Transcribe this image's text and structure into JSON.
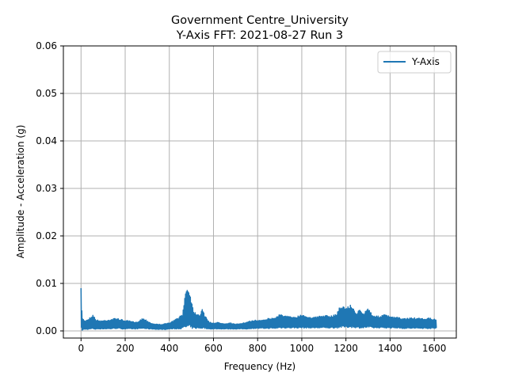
{
  "chart_data": {
    "type": "line",
    "title": "Government Centre_University",
    "subtitle": "Y-Axis FFT: 2021-08-27 Run 3",
    "xlabel": "Frequency (Hz)",
    "ylabel": "Amplitude - Acceleration (g)",
    "xlim": [
      -80,
      1700
    ],
    "ylim": [
      -0.0015,
      0.06
    ],
    "xticks": [
      0,
      200,
      400,
      600,
      800,
      1000,
      1200,
      1400,
      1600
    ],
    "xtick_labels": [
      "0",
      "200",
      "400",
      "600",
      "800",
      "1000",
      "1200",
      "1400",
      "1600"
    ],
    "yticks": [
      0.0,
      0.01,
      0.02,
      0.03,
      0.04,
      0.05,
      0.06
    ],
    "ytick_labels": [
      "0.00",
      "0.01",
      "0.02",
      "0.03",
      "0.04",
      "0.05",
      "0.06"
    ],
    "grid": true,
    "legend_position": "top-right",
    "colors": {
      "series": "#1f77b4",
      "grid": "#b0b0b0"
    },
    "series": [
      {
        "name": "Y-Axis",
        "envelope_x": [
          0,
          2,
          5,
          10,
          20,
          40,
          55,
          65,
          80,
          100,
          130,
          160,
          190,
          220,
          250,
          280,
          300,
          320,
          350,
          380,
          400,
          420,
          440,
          460,
          470,
          480,
          490,
          500,
          510,
          520,
          540,
          550,
          560,
          580,
          600,
          620,
          650,
          680,
          700,
          720,
          750,
          780,
          800,
          830,
          860,
          880,
          900,
          920,
          950,
          980,
          1000,
          1030,
          1060,
          1100,
          1130,
          1160,
          1170,
          1180,
          1200,
          1220,
          1240,
          1250,
          1260,
          1270,
          1280,
          1300,
          1320,
          1340,
          1360,
          1380,
          1400,
          1430,
          1460,
          1500,
          1540,
          1580,
          1600,
          1610
        ],
        "envelope_upper": [
          0.009,
          0.006,
          0.003,
          0.0025,
          0.0022,
          0.0028,
          0.0035,
          0.0025,
          0.0022,
          0.0022,
          0.0024,
          0.0027,
          0.0023,
          0.0021,
          0.0018,
          0.0027,
          0.0022,
          0.0016,
          0.0014,
          0.0015,
          0.0017,
          0.0022,
          0.0028,
          0.0035,
          0.0075,
          0.0093,
          0.0088,
          0.0065,
          0.0042,
          0.0038,
          0.0035,
          0.005,
          0.0033,
          0.0019,
          0.0017,
          0.0018,
          0.0016,
          0.0017,
          0.0014,
          0.0016,
          0.0018,
          0.0023,
          0.0022,
          0.0025,
          0.0027,
          0.0028,
          0.0036,
          0.0032,
          0.003,
          0.0031,
          0.0035,
          0.003,
          0.0029,
          0.0033,
          0.0031,
          0.0037,
          0.005,
          0.0053,
          0.0049,
          0.0055,
          0.0043,
          0.0038,
          0.0046,
          0.0039,
          0.0036,
          0.005,
          0.0034,
          0.0031,
          0.0032,
          0.0035,
          0.003,
          0.0029,
          0.0026,
          0.0028,
          0.0026,
          0.0027,
          0.0025,
          0.0024
        ],
        "envelope_lower": [
          0.0003,
          0.0002,
          0.0001,
          0.0002,
          0.0003,
          0.0003,
          0.0004,
          0.0003,
          0.0004,
          0.0004,
          0.0004,
          0.0005,
          0.0004,
          0.0004,
          0.0004,
          0.0005,
          0.0004,
          0.0004,
          0.0003,
          0.0003,
          0.0004,
          0.0004,
          0.0004,
          0.0005,
          0.0005,
          0.0006,
          0.0006,
          0.0005,
          0.0005,
          0.0005,
          0.0005,
          0.0005,
          0.0005,
          0.0004,
          0.0004,
          0.0004,
          0.0004,
          0.0004,
          0.0004,
          0.0004,
          0.0004,
          0.0005,
          0.0005,
          0.0005,
          0.0005,
          0.0005,
          0.0006,
          0.0006,
          0.0006,
          0.0006,
          0.0006,
          0.0006,
          0.0006,
          0.0006,
          0.0006,
          0.0006,
          0.0007,
          0.0007,
          0.0007,
          0.0007,
          0.0007,
          0.0006,
          0.0006,
          0.0006,
          0.0006,
          0.0007,
          0.0006,
          0.0006,
          0.0006,
          0.0006,
          0.0006,
          0.0006,
          0.0005,
          0.0005,
          0.0005,
          0.0005,
          0.0005,
          0.0005
        ]
      }
    ]
  }
}
